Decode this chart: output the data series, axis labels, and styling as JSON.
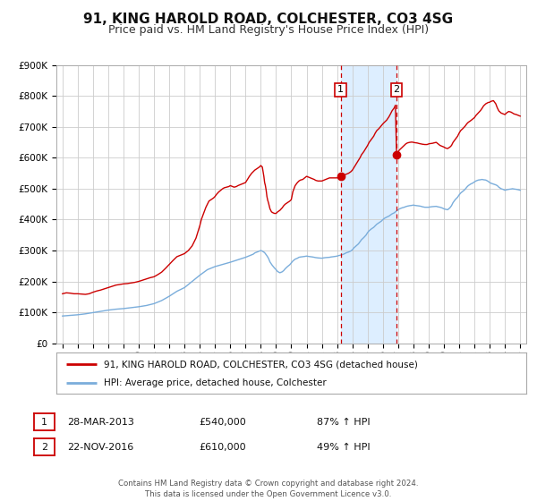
{
  "title": "91, KING HAROLD ROAD, COLCHESTER, CO3 4SG",
  "subtitle": "Price paid vs. HM Land Registry's House Price Index (HPI)",
  "title_fontsize": 11,
  "subtitle_fontsize": 9,
  "background_color": "#ffffff",
  "grid_color": "#cccccc",
  "plot_bg_color": "#ffffff",
  "red_line_color": "#cc0000",
  "blue_line_color": "#7aaddb",
  "shade_color": "#ddeeff",
  "dashed_line_color": "#cc0000",
  "ylim": [
    0,
    900000
  ],
  "ytick_values": [
    0,
    100000,
    200000,
    300000,
    400000,
    500000,
    600000,
    700000,
    800000,
    900000
  ],
  "ytick_labels": [
    "£0",
    "£100K",
    "£200K",
    "£300K",
    "£400K",
    "£500K",
    "£600K",
    "£700K",
    "£800K",
    "£900K"
  ],
  "xlim_start": 1994.6,
  "xlim_end": 2025.4,
  "point1_x": 2013.23,
  "point1_y": 540000,
  "point2_x": 2016.9,
  "point2_y": 610000,
  "legend_line1": "91, KING HAROLD ROAD, COLCHESTER, CO3 4SG (detached house)",
  "legend_line2": "HPI: Average price, detached house, Colchester",
  "table_row1": [
    "1",
    "28-MAR-2013",
    "£540,000",
    "87% ↑ HPI"
  ],
  "table_row2": [
    "2",
    "22-NOV-2016",
    "£610,000",
    "49% ↑ HPI"
  ],
  "footer_text": "Contains HM Land Registry data © Crown copyright and database right 2024.\nThis data is licensed under the Open Government Licence v3.0.",
  "hpi_red_data": [
    [
      1995.0,
      160000
    ],
    [
      1995.25,
      163000
    ],
    [
      1995.5,
      162000
    ],
    [
      1995.75,
      160000
    ],
    [
      1996.0,
      160000
    ],
    [
      1996.25,
      159000
    ],
    [
      1996.5,
      158000
    ],
    [
      1996.75,
      160000
    ],
    [
      1997.0,
      165000
    ],
    [
      1997.25,
      169000
    ],
    [
      1997.5,
      172000
    ],
    [
      1997.75,
      176000
    ],
    [
      1998.0,
      180000
    ],
    [
      1998.25,
      184000
    ],
    [
      1998.5,
      188000
    ],
    [
      1998.75,
      190000
    ],
    [
      1999.0,
      192000
    ],
    [
      1999.25,
      193000
    ],
    [
      1999.5,
      195000
    ],
    [
      1999.75,
      197000
    ],
    [
      2000.0,
      200000
    ],
    [
      2000.25,
      204000
    ],
    [
      2000.5,
      208000
    ],
    [
      2000.75,
      212000
    ],
    [
      2001.0,
      215000
    ],
    [
      2001.25,
      222000
    ],
    [
      2001.5,
      230000
    ],
    [
      2001.75,
      242000
    ],
    [
      2002.0,
      255000
    ],
    [
      2002.25,
      268000
    ],
    [
      2002.5,
      280000
    ],
    [
      2002.75,
      285000
    ],
    [
      2003.0,
      290000
    ],
    [
      2003.25,
      300000
    ],
    [
      2003.5,
      315000
    ],
    [
      2003.75,
      340000
    ],
    [
      2004.0,
      380000
    ],
    [
      2004.1,
      400000
    ],
    [
      2004.25,
      420000
    ],
    [
      2004.4,
      440000
    ],
    [
      2004.5,
      450000
    ],
    [
      2004.6,
      460000
    ],
    [
      2004.75,
      465000
    ],
    [
      2004.9,
      470000
    ],
    [
      2005.0,
      475000
    ],
    [
      2005.1,
      482000
    ],
    [
      2005.25,
      490000
    ],
    [
      2005.4,
      496000
    ],
    [
      2005.5,
      500000
    ],
    [
      2005.6,
      503000
    ],
    [
      2005.75,
      505000
    ],
    [
      2005.9,
      507000
    ],
    [
      2006.0,
      510000
    ],
    [
      2006.1,
      508000
    ],
    [
      2006.25,
      505000
    ],
    [
      2006.4,
      507000
    ],
    [
      2006.5,
      510000
    ],
    [
      2006.6,
      512000
    ],
    [
      2006.75,
      515000
    ],
    [
      2006.9,
      518000
    ],
    [
      2007.0,
      520000
    ],
    [
      2007.1,
      528000
    ],
    [
      2007.25,
      540000
    ],
    [
      2007.4,
      550000
    ],
    [
      2007.5,
      555000
    ],
    [
      2007.6,
      560000
    ],
    [
      2007.75,
      565000
    ],
    [
      2007.9,
      570000
    ],
    [
      2008.0,
      575000
    ],
    [
      2008.1,
      570000
    ],
    [
      2008.15,
      555000
    ],
    [
      2008.2,
      540000
    ],
    [
      2008.25,
      520000
    ],
    [
      2008.3,
      510000
    ],
    [
      2008.35,
      495000
    ],
    [
      2008.4,
      475000
    ],
    [
      2008.45,
      463000
    ],
    [
      2008.5,
      455000
    ],
    [
      2008.55,
      445000
    ],
    [
      2008.6,
      435000
    ],
    [
      2008.65,
      430000
    ],
    [
      2008.7,
      425000
    ],
    [
      2008.8,
      422000
    ],
    [
      2008.9,
      420000
    ],
    [
      2009.0,
      420000
    ],
    [
      2009.1,
      425000
    ],
    [
      2009.25,
      430000
    ],
    [
      2009.4,
      438000
    ],
    [
      2009.5,
      445000
    ],
    [
      2009.6,
      450000
    ],
    [
      2009.75,
      455000
    ],
    [
      2009.9,
      460000
    ],
    [
      2010.0,
      465000
    ],
    [
      2010.1,
      490000
    ],
    [
      2010.25,
      510000
    ],
    [
      2010.4,
      520000
    ],
    [
      2010.5,
      525000
    ],
    [
      2010.6,
      528000
    ],
    [
      2010.75,
      530000
    ],
    [
      2010.9,
      536000
    ],
    [
      2011.0,
      540000
    ],
    [
      2011.1,
      538000
    ],
    [
      2011.25,
      535000
    ],
    [
      2011.4,
      532000
    ],
    [
      2011.5,
      530000
    ],
    [
      2011.6,
      527000
    ],
    [
      2011.75,
      525000
    ],
    [
      2011.9,
      525000
    ],
    [
      2012.0,
      525000
    ],
    [
      2012.1,
      527000
    ],
    [
      2012.25,
      530000
    ],
    [
      2012.4,
      533000
    ],
    [
      2012.5,
      535000
    ],
    [
      2012.6,
      535000
    ],
    [
      2012.75,
      535000
    ],
    [
      2012.9,
      535000
    ],
    [
      2013.0,
      535000
    ],
    [
      2013.1,
      537000
    ],
    [
      2013.23,
      540000
    ],
    [
      2013.4,
      543000
    ],
    [
      2013.5,
      545000
    ],
    [
      2013.6,
      547000
    ],
    [
      2013.75,
      550000
    ],
    [
      2013.9,
      555000
    ],
    [
      2014.0,
      560000
    ],
    [
      2014.1,
      568000
    ],
    [
      2014.25,
      580000
    ],
    [
      2014.4,
      592000
    ],
    [
      2014.5,
      600000
    ],
    [
      2014.6,
      610000
    ],
    [
      2014.75,
      620000
    ],
    [
      2014.9,
      632000
    ],
    [
      2015.0,
      640000
    ],
    [
      2015.1,
      650000
    ],
    [
      2015.25,
      660000
    ],
    [
      2015.4,
      670000
    ],
    [
      2015.5,
      680000
    ],
    [
      2015.6,
      688000
    ],
    [
      2015.75,
      695000
    ],
    [
      2015.9,
      704000
    ],
    [
      2016.0,
      710000
    ],
    [
      2016.1,
      715000
    ],
    [
      2016.25,
      722000
    ],
    [
      2016.4,
      733000
    ],
    [
      2016.5,
      742000
    ],
    [
      2016.6,
      752000
    ],
    [
      2016.75,
      762000
    ],
    [
      2016.82,
      770000
    ],
    [
      2016.9,
      610000
    ],
    [
      2017.0,
      620000
    ],
    [
      2017.1,
      626000
    ],
    [
      2017.25,
      633000
    ],
    [
      2017.4,
      640000
    ],
    [
      2017.5,
      645000
    ],
    [
      2017.6,
      648000
    ],
    [
      2017.75,
      650000
    ],
    [
      2017.9,
      651000
    ],
    [
      2018.0,
      650000
    ],
    [
      2018.1,
      649000
    ],
    [
      2018.25,
      648000
    ],
    [
      2018.4,
      646000
    ],
    [
      2018.5,
      645000
    ],
    [
      2018.6,
      644000
    ],
    [
      2018.75,
      643000
    ],
    [
      2018.9,
      643000
    ],
    [
      2019.0,
      645000
    ],
    [
      2019.1,
      646000
    ],
    [
      2019.25,
      647000
    ],
    [
      2019.4,
      649000
    ],
    [
      2019.5,
      650000
    ],
    [
      2019.6,
      646000
    ],
    [
      2019.75,
      640000
    ],
    [
      2019.9,
      637000
    ],
    [
      2020.0,
      635000
    ],
    [
      2020.1,
      632000
    ],
    [
      2020.25,
      630000
    ],
    [
      2020.4,
      635000
    ],
    [
      2020.5,
      640000
    ],
    [
      2020.6,
      650000
    ],
    [
      2020.75,
      660000
    ],
    [
      2020.9,
      670000
    ],
    [
      2021.0,
      680000
    ],
    [
      2021.1,
      688000
    ],
    [
      2021.25,
      695000
    ],
    [
      2021.4,
      703000
    ],
    [
      2021.5,
      710000
    ],
    [
      2021.6,
      715000
    ],
    [
      2021.75,
      720000
    ],
    [
      2021.9,
      726000
    ],
    [
      2022.0,
      730000
    ],
    [
      2022.1,
      737000
    ],
    [
      2022.25,
      745000
    ],
    [
      2022.4,
      753000
    ],
    [
      2022.5,
      760000
    ],
    [
      2022.6,
      768000
    ],
    [
      2022.75,
      775000
    ],
    [
      2022.9,
      779000
    ],
    [
      2023.0,
      780000
    ],
    [
      2023.1,
      783000
    ],
    [
      2023.25,
      785000
    ],
    [
      2023.4,
      775000
    ],
    [
      2023.5,
      762000
    ],
    [
      2023.6,
      752000
    ],
    [
      2023.75,
      745000
    ],
    [
      2023.9,
      742000
    ],
    [
      2024.0,
      740000
    ],
    [
      2024.1,
      745000
    ],
    [
      2024.25,
      750000
    ],
    [
      2024.4,
      748000
    ],
    [
      2024.5,
      745000
    ],
    [
      2024.6,
      742000
    ],
    [
      2024.75,
      740000
    ],
    [
      2024.9,
      737000
    ],
    [
      2025.0,
      735000
    ]
  ],
  "hpi_blue_data": [
    [
      1995.0,
      88000
    ],
    [
      1995.25,
      89000
    ],
    [
      1995.5,
      90000
    ],
    [
      1995.75,
      91000
    ],
    [
      1996.0,
      92000
    ],
    [
      1996.25,
      93500
    ],
    [
      1996.5,
      95000
    ],
    [
      1996.75,
      97000
    ],
    [
      1997.0,
      99000
    ],
    [
      1997.25,
      101000
    ],
    [
      1997.5,
      103000
    ],
    [
      1997.75,
      105000
    ],
    [
      1998.0,
      107000
    ],
    [
      1998.25,
      108500
    ],
    [
      1998.5,
      110000
    ],
    [
      1998.75,
      111000
    ],
    [
      1999.0,
      112000
    ],
    [
      1999.25,
      113500
    ],
    [
      1999.5,
      115000
    ],
    [
      1999.75,
      116500
    ],
    [
      2000.0,
      118000
    ],
    [
      2000.25,
      120000
    ],
    [
      2000.5,
      122000
    ],
    [
      2000.75,
      125000
    ],
    [
      2001.0,
      128000
    ],
    [
      2001.25,
      133000
    ],
    [
      2001.5,
      138000
    ],
    [
      2001.75,
      145000
    ],
    [
      2002.0,
      152000
    ],
    [
      2002.25,
      160000
    ],
    [
      2002.5,
      168000
    ],
    [
      2002.75,
      174000
    ],
    [
      2003.0,
      180000
    ],
    [
      2003.25,
      190000
    ],
    [
      2003.5,
      200000
    ],
    [
      2003.75,
      210000
    ],
    [
      2004.0,
      220000
    ],
    [
      2004.25,
      229000
    ],
    [
      2004.5,
      238000
    ],
    [
      2004.75,
      243000
    ],
    [
      2005.0,
      248000
    ],
    [
      2005.25,
      251500
    ],
    [
      2005.5,
      255000
    ],
    [
      2005.75,
      258500
    ],
    [
      2006.0,
      262000
    ],
    [
      2006.25,
      266000
    ],
    [
      2006.5,
      270000
    ],
    [
      2006.75,
      274000
    ],
    [
      2007.0,
      278000
    ],
    [
      2007.25,
      283000
    ],
    [
      2007.5,
      288000
    ],
    [
      2007.6,
      292000
    ],
    [
      2007.75,
      295000
    ],
    [
      2007.9,
      298000
    ],
    [
      2008.0,
      300000
    ],
    [
      2008.1,
      298000
    ],
    [
      2008.25,
      293000
    ],
    [
      2008.4,
      283000
    ],
    [
      2008.5,
      275000
    ],
    [
      2008.6,
      263000
    ],
    [
      2008.75,
      252000
    ],
    [
      2008.9,
      243000
    ],
    [
      2009.0,
      238000
    ],
    [
      2009.1,
      232000
    ],
    [
      2009.25,
      228000
    ],
    [
      2009.4,
      231000
    ],
    [
      2009.5,
      235000
    ],
    [
      2009.6,
      241000
    ],
    [
      2009.75,
      248000
    ],
    [
      2009.9,
      254000
    ],
    [
      2010.0,
      260000
    ],
    [
      2010.1,
      266000
    ],
    [
      2010.25,
      272000
    ],
    [
      2010.4,
      275000
    ],
    [
      2010.5,
      278000
    ],
    [
      2010.6,
      279000
    ],
    [
      2010.75,
      280000
    ],
    [
      2010.9,
      281000
    ],
    [
      2011.0,
      282000
    ],
    [
      2011.1,
      281000
    ],
    [
      2011.25,
      280000
    ],
    [
      2011.4,
      279000
    ],
    [
      2011.5,
      278000
    ],
    [
      2011.6,
      277000
    ],
    [
      2011.75,
      276000
    ],
    [
      2011.9,
      275500
    ],
    [
      2012.0,
      275000
    ],
    [
      2012.1,
      276000
    ],
    [
      2012.25,
      277000
    ],
    [
      2012.4,
      277500
    ],
    [
      2012.5,
      278000
    ],
    [
      2012.6,
      279000
    ],
    [
      2012.75,
      280000
    ],
    [
      2012.9,
      281000
    ],
    [
      2013.0,
      282000
    ],
    [
      2013.1,
      283500
    ],
    [
      2013.23,
      285000
    ],
    [
      2013.4,
      287500
    ],
    [
      2013.5,
      290000
    ],
    [
      2013.6,
      292500
    ],
    [
      2013.75,
      295000
    ],
    [
      2013.9,
      298500
    ],
    [
      2014.0,
      302000
    ],
    [
      2014.1,
      308500
    ],
    [
      2014.25,
      315000
    ],
    [
      2014.4,
      321500
    ],
    [
      2014.5,
      328000
    ],
    [
      2014.6,
      335000
    ],
    [
      2014.75,
      342000
    ],
    [
      2014.9,
      350000
    ],
    [
      2015.0,
      358000
    ],
    [
      2015.1,
      364000
    ],
    [
      2015.25,
      370000
    ],
    [
      2015.4,
      375000
    ],
    [
      2015.5,
      380000
    ],
    [
      2015.6,
      385000
    ],
    [
      2015.75,
      390000
    ],
    [
      2015.9,
      395000
    ],
    [
      2016.0,
      400000
    ],
    [
      2016.1,
      404000
    ],
    [
      2016.25,
      408000
    ],
    [
      2016.4,
      411500
    ],
    [
      2016.5,
      415000
    ],
    [
      2016.6,
      418500
    ],
    [
      2016.75,
      422000
    ],
    [
      2016.82,
      425000
    ],
    [
      2016.9,
      428000
    ],
    [
      2017.0,
      432000
    ],
    [
      2017.1,
      435000
    ],
    [
      2017.25,
      438000
    ],
    [
      2017.4,
      440000
    ],
    [
      2017.5,
      442000
    ],
    [
      2017.6,
      443500
    ],
    [
      2017.75,
      445000
    ],
    [
      2017.9,
      446000
    ],
    [
      2018.0,
      447000
    ],
    [
      2018.1,
      446000
    ],
    [
      2018.25,
      445000
    ],
    [
      2018.4,
      444000
    ],
    [
      2018.5,
      443000
    ],
    [
      2018.6,
      441500
    ],
    [
      2018.75,
      440000
    ],
    [
      2018.9,
      440000
    ],
    [
      2019.0,
      440000
    ],
    [
      2019.1,
      441000
    ],
    [
      2019.25,
      442000
    ],
    [
      2019.4,
      442500
    ],
    [
      2019.5,
      443000
    ],
    [
      2019.6,
      441500
    ],
    [
      2019.75,
      440000
    ],
    [
      2019.9,
      437500
    ],
    [
      2020.0,
      435000
    ],
    [
      2020.1,
      433500
    ],
    [
      2020.25,
      432000
    ],
    [
      2020.4,
      438500
    ],
    [
      2020.5,
      445000
    ],
    [
      2020.6,
      455000
    ],
    [
      2020.75,
      465000
    ],
    [
      2020.9,
      472500
    ],
    [
      2021.0,
      480000
    ],
    [
      2021.1,
      486000
    ],
    [
      2021.25,
      492000
    ],
    [
      2021.4,
      498500
    ],
    [
      2021.5,
      505000
    ],
    [
      2021.6,
      510000
    ],
    [
      2021.75,
      515000
    ],
    [
      2021.9,
      518500
    ],
    [
      2022.0,
      522000
    ],
    [
      2022.1,
      525000
    ],
    [
      2022.25,
      528000
    ],
    [
      2022.4,
      529000
    ],
    [
      2022.5,
      530000
    ],
    [
      2022.6,
      529000
    ],
    [
      2022.75,
      528000
    ],
    [
      2022.9,
      524000
    ],
    [
      2023.0,
      520000
    ],
    [
      2023.1,
      517500
    ],
    [
      2023.25,
      515000
    ],
    [
      2023.4,
      512500
    ],
    [
      2023.5,
      510000
    ],
    [
      2023.6,
      505000
    ],
    [
      2023.75,
      500000
    ],
    [
      2023.9,
      497500
    ],
    [
      2024.0,
      495000
    ],
    [
      2024.1,
      496500
    ],
    [
      2024.25,
      498000
    ],
    [
      2024.4,
      499000
    ],
    [
      2024.5,
      500000
    ],
    [
      2024.6,
      499000
    ],
    [
      2024.75,
      498000
    ],
    [
      2024.9,
      496500
    ],
    [
      2025.0,
      495000
    ]
  ]
}
